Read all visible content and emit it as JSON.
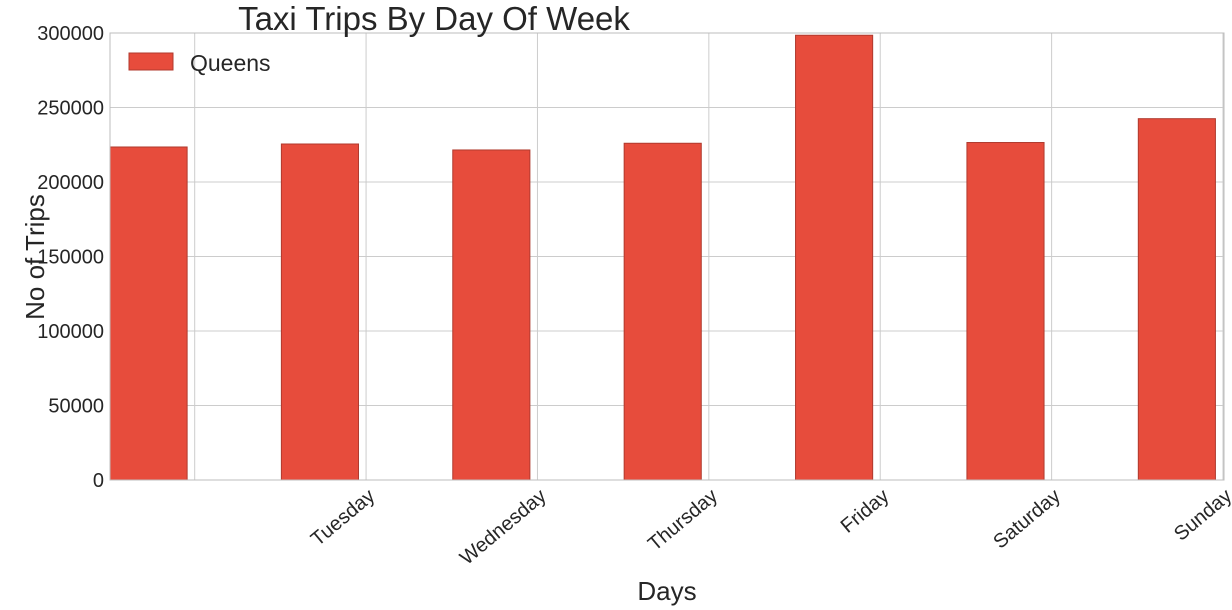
{
  "chart_data": {
    "type": "bar",
    "title": "Taxi Trips By Day Of Week",
    "xlabel": "Days",
    "ylabel": "No of Trips",
    "categories": [
      "",
      "Tuesday",
      "Wednesday",
      "Thursday",
      "Friday",
      "Saturday",
      "Sunday"
    ],
    "series": [
      {
        "name": "Queens",
        "values": [
          223500,
          225500,
          221500,
          226000,
          298500,
          226500,
          242500
        ]
      }
    ],
    "ylim": [
      0,
      300000
    ],
    "yticks": [
      0,
      50000,
      100000,
      150000,
      200000,
      250000,
      300000
    ],
    "grid": true,
    "legend_position": "top-left",
    "colors": {
      "bar": "#e74c3c",
      "bar_edge": "#b03a2e",
      "grid": "#cccccc",
      "frame": "#bdbdbd",
      "text": "#262626"
    }
  }
}
